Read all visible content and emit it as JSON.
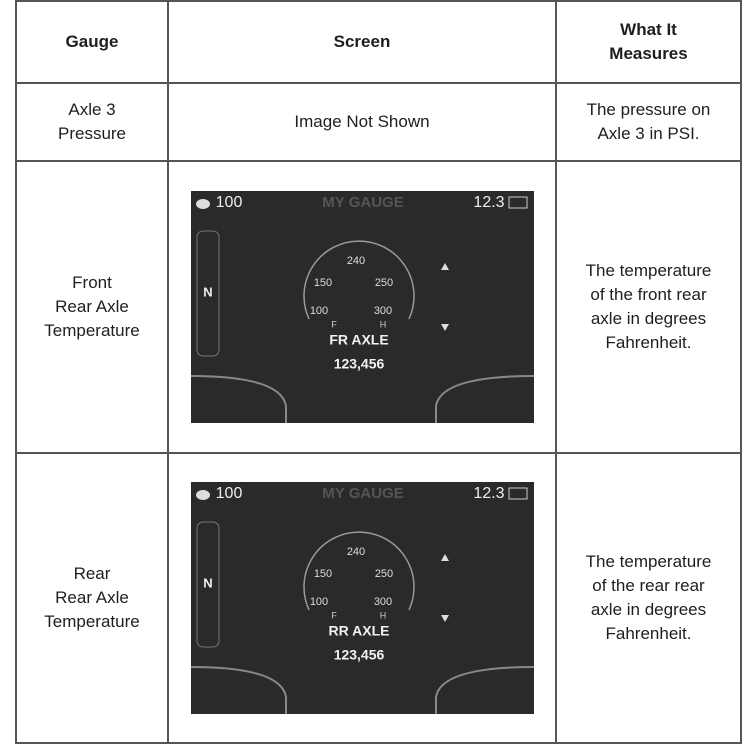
{
  "table": {
    "header": [
      [
        "Gauge"
      ],
      [
        "Screen"
      ],
      [
        "What It",
        "Measures"
      ]
    ],
    "rows": [
      {
        "gauge": [
          "Axle 3",
          "Pressure"
        ],
        "screen": "Image Not Shown",
        "description": [
          "The pressure on",
          "Axle 3 in PSI."
        ]
      },
      {
        "gauge": [
          "Front",
          "Rear Axle",
          "Temperature"
        ],
        "screen": {
          "title": "MY GAUGE",
          "left_value": "100",
          "right_value": "12.3",
          "gear": "N",
          "scale": [
            "240",
            "150",
            "250",
            "100",
            "300"
          ],
          "low": "F",
          "high": "H",
          "label": "FR AXLE",
          "reading": "123,456"
        },
        "description": [
          "The temperature",
          "of the front rear",
          "axle in degrees",
          "Fahrenheit."
        ]
      },
      {
        "gauge": [
          "Rear",
          "Rear Axle",
          "Temperature"
        ],
        "screen": {
          "title": "MY GAUGE",
          "left_value": "100",
          "right_value": "12.3",
          "gear": "N",
          "scale": [
            "240",
            "150",
            "250",
            "100",
            "300"
          ],
          "low": "F",
          "high": "H",
          "label": "RR AXLE",
          "reading": "123,456"
        },
        "description": [
          "The temperature",
          "of the rear rear",
          "axle in degrees",
          "Fahrenheit."
        ]
      }
    ]
  }
}
